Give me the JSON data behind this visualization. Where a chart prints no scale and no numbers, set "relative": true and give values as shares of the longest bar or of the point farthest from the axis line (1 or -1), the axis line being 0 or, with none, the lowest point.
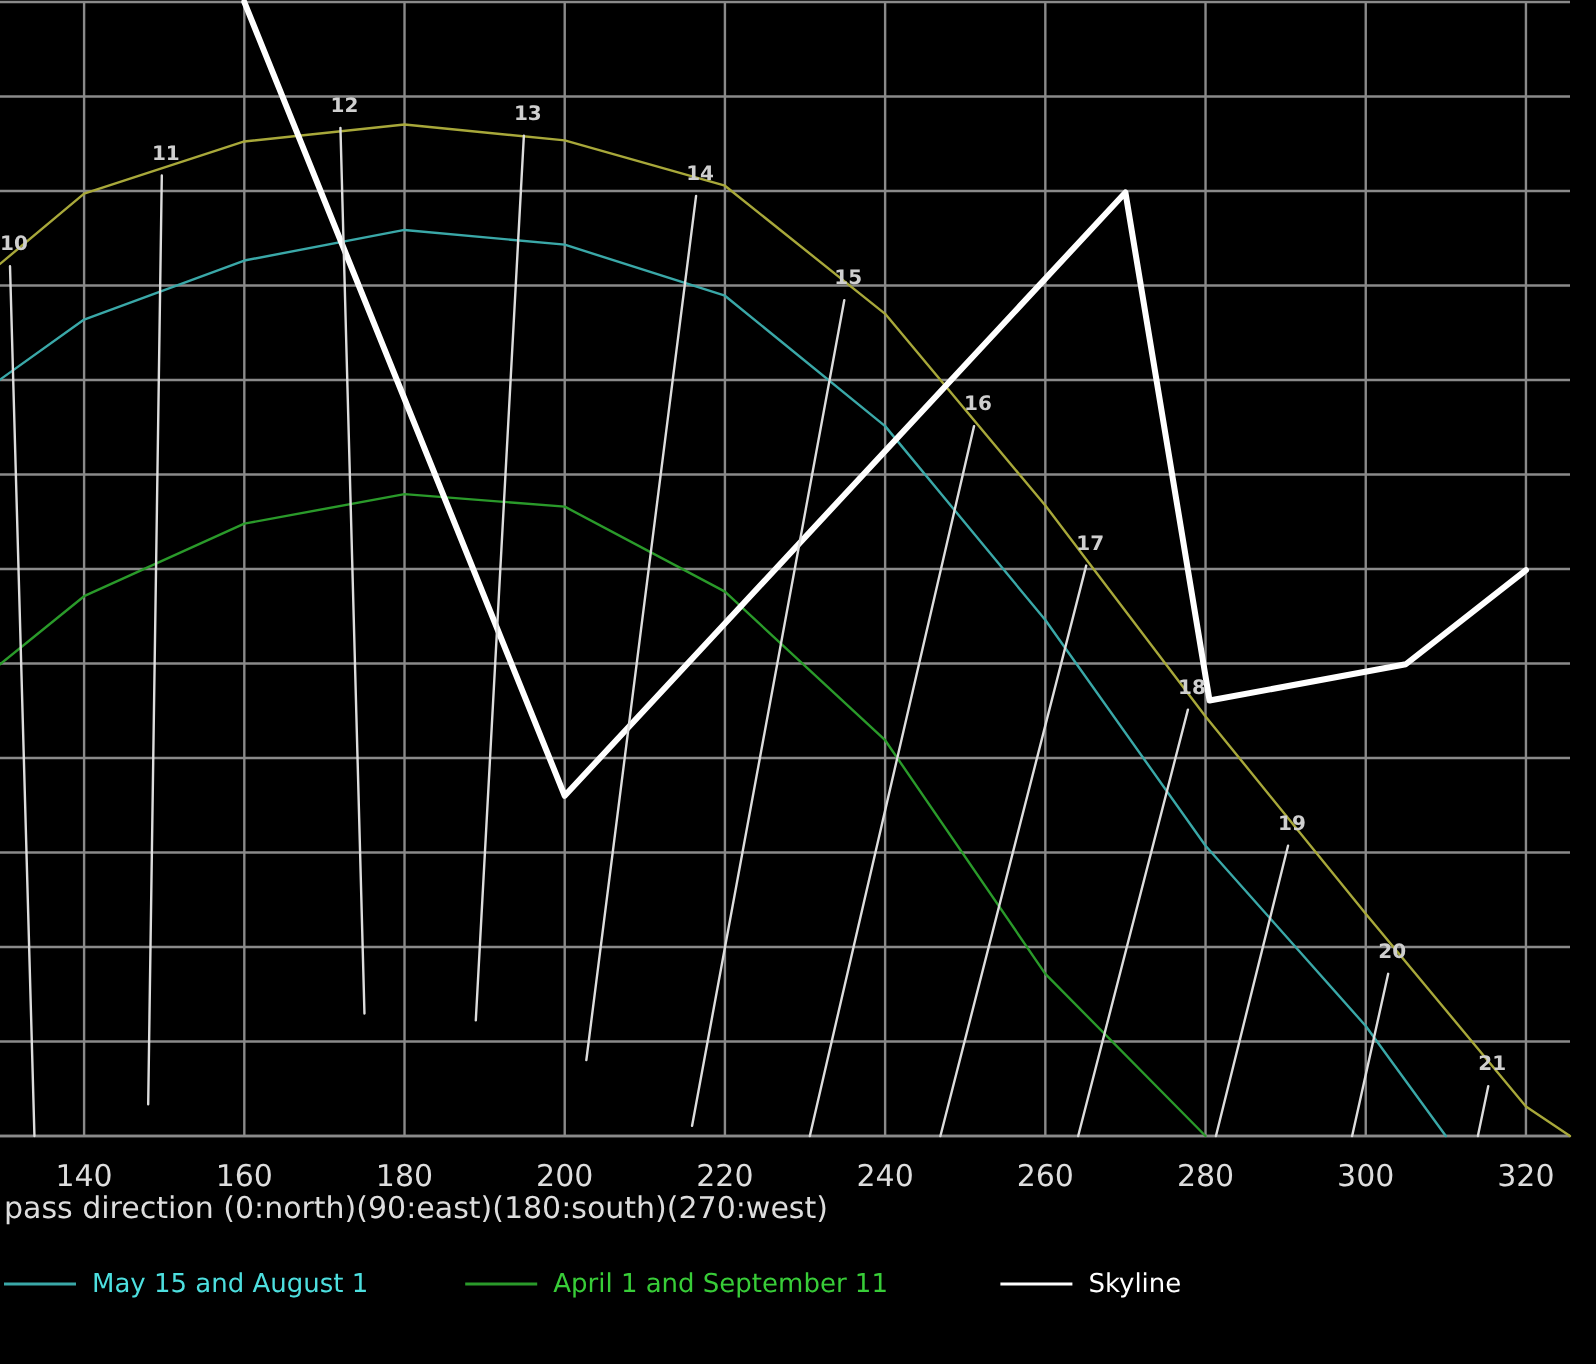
{
  "chart_data": {
    "type": "line",
    "relative": true,
    "xlabel": "pass direction (0:north)(90:east)(180:south)(270:west)",
    "xlim": [
      129.5,
      325.5
    ],
    "xticks": [
      140,
      160,
      180,
      200,
      220,
      240,
      260,
      280,
      300,
      320
    ],
    "grid": true,
    "legend": "bottom",
    "marker": "none",
    "line_style": "solid",
    "series": [
      {
        "color": "#a8a83a",
        "x": [
          129.5,
          140,
          160,
          180,
          200,
          220,
          240,
          260,
          280,
          300,
          320,
          325.5
        ],
        "values": [
          0.769,
          0.831,
          0.877,
          0.892,
          0.878,
          0.838,
          0.725,
          0.556,
          0.37,
          0.196,
          0.026,
          0
        ]
      },
      {
        "name": "May 15 and August 1",
        "color": "#3aa8a8",
        "x": [
          129.5,
          140,
          160,
          180,
          200,
          220,
          240,
          260,
          280,
          300,
          310
        ],
        "values": [
          0.667,
          0.72,
          0.772,
          0.799,
          0.786,
          0.741,
          0.626,
          0.455,
          0.256,
          0.097,
          0
        ]
      },
      {
        "name": "April 1 and September 11",
        "color": "#2a9a2a",
        "x": [
          129.5,
          140,
          160,
          180,
          200,
          220,
          240,
          260,
          280
        ],
        "values": [
          0.416,
          0.476,
          0.54,
          0.566,
          0.555,
          0.48,
          0.349,
          0.143,
          0
        ]
      },
      {
        "name": "Skyline",
        "color": "#ffffff",
        "x": [
          160,
          200,
          270,
          280.5,
          305,
          320
        ],
        "values": [
          1,
          0.3,
          0.832,
          0.384,
          0.416,
          0.499
        ]
      },
      {
        "color": "#dddddd",
        "x": [
          130.75,
          133.8
        ],
        "values": [
          0.767,
          0
        ]
      },
      {
        "color": "#dddddd",
        "x": [
          149.7,
          148.0
        ],
        "values": [
          0.847,
          0.028
        ]
      },
      {
        "color": "#dddddd",
        "x": [
          172.0,
          175.0
        ],
        "values": [
          0.889,
          0.108
        ]
      },
      {
        "color": "#dddddd",
        "x": [
          194.9,
          188.9
        ],
        "values": [
          0.882,
          0.102
        ]
      },
      {
        "color": "#dddddd",
        "x": [
          216.4,
          202.7
        ],
        "values": [
          0.829,
          0.067
        ]
      },
      {
        "color": "#dddddd",
        "x": [
          234.9,
          215.9
        ],
        "values": [
          0.737,
          0.009
        ]
      },
      {
        "color": "#dddddd",
        "x": [
          251.1,
          230.6
        ],
        "values": [
          0.626,
          0
        ]
      },
      {
        "color": "#dddddd",
        "x": [
          265.1,
          246.9
        ],
        "values": [
          0.503,
          0
        ]
      },
      {
        "color": "#dddddd",
        "x": [
          277.8,
          264.1
        ],
        "values": [
          0.376,
          0
        ]
      },
      {
        "color": "#dddddd",
        "x": [
          290.3,
          281.3
        ],
        "values": [
          0.256,
          0
        ]
      },
      {
        "color": "#dddddd",
        "x": [
          302.8,
          298.3
        ],
        "values": [
          0.143,
          0
        ]
      },
      {
        "color": "#dddddd",
        "x": [
          315.3,
          314.0
        ],
        "values": [
          0.044,
          0
        ]
      }
    ],
    "annotations": [
      {
        "text": "10",
        "x": 130.75,
        "y": 0.767
      },
      {
        "text": "11",
        "x": 149.7,
        "y": 0.847
      },
      {
        "text": "12",
        "x": 172.0,
        "y": 0.889
      },
      {
        "text": "13",
        "x": 194.9,
        "y": 0.882
      },
      {
        "text": "14",
        "x": 216.4,
        "y": 0.829
      },
      {
        "text": "15",
        "x": 234.9,
        "y": 0.737
      },
      {
        "text": "16",
        "x": 251.1,
        "y": 0.626
      },
      {
        "text": "17",
        "x": 265.1,
        "y": 0.503
      },
      {
        "text": "18",
        "x": 277.8,
        "y": 0.376
      },
      {
        "text": "19",
        "x": 290.3,
        "y": 0.256
      },
      {
        "text": "20",
        "x": 302.8,
        "y": 0.143
      },
      {
        "text": "21",
        "x": 315.3,
        "y": 0.044
      }
    ]
  }
}
